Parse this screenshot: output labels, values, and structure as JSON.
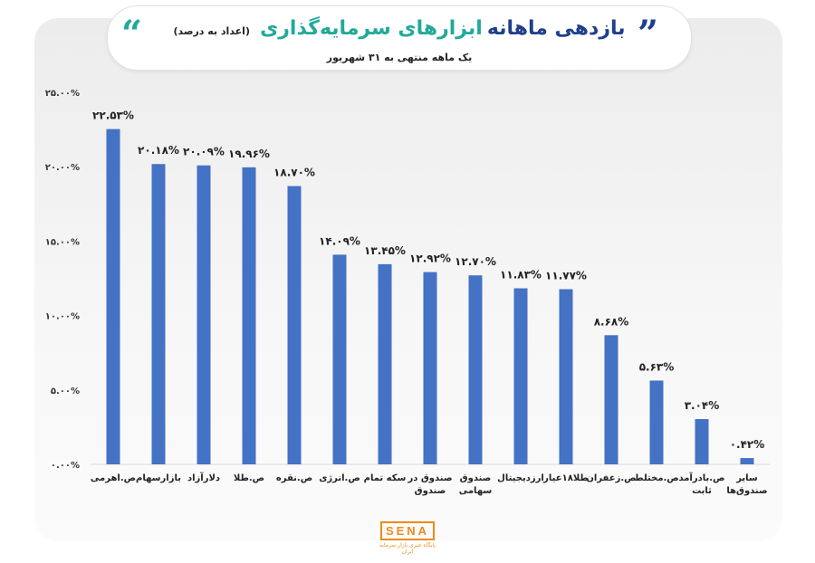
{
  "colors": {
    "bar": "#4472c4",
    "title_dark": "#1f3f8a",
    "title_accent": "#21a99a",
    "logo": "#f08a1c"
  },
  "header": {
    "title_main": "بازدهی ماهانه",
    "title_accent": "ابزارهای سرمایه‌گذاری",
    "title_note": "(اعداد به درصد)",
    "subtitle": "یک ماهه منتهی به ۳۱ شهریور",
    "quote_icon": "quote-icon"
  },
  "logo": {
    "text": "SENA",
    "tagline": "پایگاه خبری بازار سرمایه ایران"
  },
  "chart_data": {
    "type": "bar",
    "categories": [
      "ص.اهرمی",
      "بازارسهام",
      "دلارآزاد",
      "ص.طلا",
      "ص.نقره",
      "ص.انرژی",
      "سکه تمام",
      "صندوق در صندوق",
      "صندوق سهامی",
      "ارزدیجیتال",
      "طلا۱۸عیار",
      "ص.زعفران",
      "ص.مختلط",
      "ص.بادرآمد ثابت",
      "سایر صندوق‌ها"
    ],
    "values": [
      22.53,
      20.18,
      20.09,
      19.96,
      18.7,
      14.09,
      13.45,
      12.92,
      12.7,
      11.83,
      11.77,
      8.68,
      5.63,
      3.04,
      0.42
    ],
    "value_labels": [
      "۲۲.۵۳%",
      "۲۰.۱۸%",
      "۲۰.۰۹%",
      "۱۹.۹۶%",
      "۱۸.۷۰%",
      "۱۴.۰۹%",
      "۱۳.۴۵%",
      "۱۲.۹۲%",
      "۱۲.۷۰%",
      "۱۱.۸۳%",
      "۱۱.۷۷%",
      "۸.۶۸%",
      "۵.۶۳%",
      "۳.۰۴%",
      "۰.۴۲%"
    ],
    "y_ticks": [
      0,
      5,
      10,
      15,
      20,
      25
    ],
    "y_tick_labels": [
      "۰.۰۰%",
      "۵.۰۰%",
      "۱۰.۰۰%",
      "۱۵.۰۰%",
      "۲۰.۰۰%",
      "۲۵.۰۰%"
    ],
    "ylim": [
      0,
      25
    ],
    "grid": false,
    "legend": "none"
  }
}
